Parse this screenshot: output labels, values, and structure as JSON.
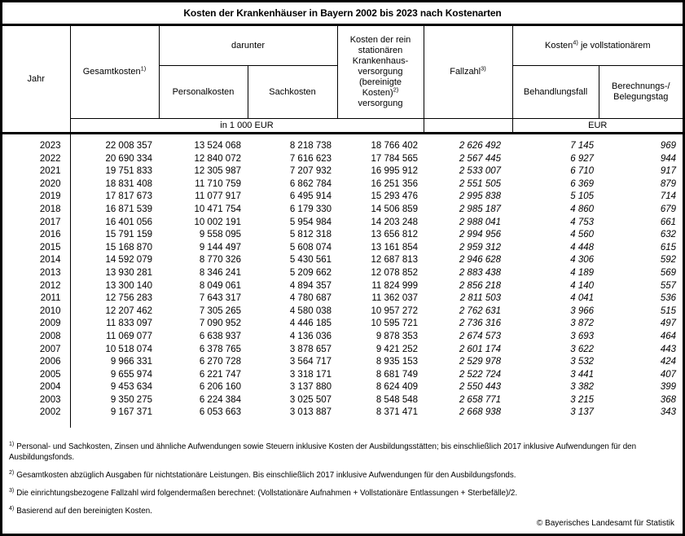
{
  "title": "Kosten der Krankenhäuser in Bayern 2002 bis 2023 nach Kostenarten",
  "table": {
    "header": {
      "jahr": "Jahr",
      "gesamtkosten": {
        "label": "Gesamtkosten",
        "sup": "1)"
      },
      "darunter": "darunter",
      "personalkosten": "Personalkosten",
      "sachkosten": "Sachkosten",
      "bereinigte": {
        "part1": "Kosten der rein stationären Krankenhaus-versorgung (bereinigte Kosten)",
        "sup": "2)",
        "part2": "versorgung"
      },
      "fallzahl": {
        "label": "Fallzahl",
        "sup": "3)"
      },
      "kosten_je": {
        "part1": "Kosten",
        "sup": "4)",
        "part2": " je vollstationärem"
      },
      "behandlungsfall": "Behandlungsfall",
      "belegungstag": {
        "line1": "Berechnungs-/",
        "line2": "Belegungstag"
      },
      "unit_left": "in 1 000 EUR",
      "unit_right": "EUR"
    },
    "rows": [
      [
        "2023",
        "22 008 357",
        "13 524 068",
        "8 218 738",
        "18 766 402",
        "2 626 492",
        "7 145",
        "969"
      ],
      [
        "2022",
        "20 690 334",
        "12 840 072",
        "7 616 623",
        "17 784 565",
        "2 567 445",
        "6 927",
        "944"
      ],
      [
        "2021",
        "19 751 833",
        "12 305 987",
        "7 207 932",
        "16 995 912",
        "2 533 007",
        "6 710",
        "917"
      ],
      [
        "2020",
        "18 831 408",
        "11 710 759",
        "6 862 784",
        "16 251 356",
        "2 551 505",
        "6 369",
        "879"
      ],
      [
        "2019",
        "17 817 673",
        "11 077 917",
        "6 495 914",
        "15 293 476",
        "2 995 838",
        "5 105",
        "714"
      ],
      [
        "2018",
        "16 871 539",
        "10 471 754",
        "6 179 330",
        "14 506 859",
        "2 985 187",
        "4 860",
        "679"
      ],
      [
        "2017",
        "16 401 056",
        "10 002 191",
        "5 954 984",
        "14 203 248",
        "2 988 041",
        "4 753",
        "661"
      ],
      [
        "2016",
        "15 791 159",
        "9 558 095",
        "5 812 318",
        "13 656 812",
        "2 994 956",
        "4 560",
        "632"
      ],
      [
        "2015",
        "15 168 870",
        "9 144 497",
        "5 608 074",
        "13 161 854",
        "2 959 312",
        "4 448",
        "615"
      ],
      [
        "2014",
        "14 592 079",
        "8 770 326",
        "5 430 561",
        "12 687 813",
        "2 946 628",
        "4 306",
        "592"
      ],
      [
        "2013",
        "13 930 281",
        "8 346 241",
        "5 209 662",
        "12 078 852",
        "2 883 438",
        "4 189",
        "569"
      ],
      [
        "2012",
        "13 300 140",
        "8 049 061",
        "4 894 357",
        "11 824 999",
        "2 856 218",
        "4 140",
        "557"
      ],
      [
        "2011",
        "12 756 283",
        "7 643 317",
        "4 780 687",
        "11 362 037",
        "2 811 503",
        "4 041",
        "536"
      ],
      [
        "2010",
        "12 207 462",
        "7 305 265",
        "4 580 038",
        "10 957 272",
        "2 762 631",
        "3 966",
        "515"
      ],
      [
        "2009",
        "11 833 097",
        "7 090 952",
        "4 446 185",
        "10 595 721",
        "2 736 316",
        "3 872",
        "497"
      ],
      [
        "2008",
        "11 069 077",
        "6 638 937",
        "4 136 036",
        "9 878 353",
        "2 674 573",
        "3 693",
        "464"
      ],
      [
        "2007",
        "10 518 074",
        "6 378 765",
        "3 878 657",
        "9 421 252",
        "2 601 174",
        "3 622",
        "443"
      ],
      [
        "2006",
        "9 966 331",
        "6 270 728",
        "3 564 717",
        "8 935 153",
        "2 529 978",
        "3 532",
        "424"
      ],
      [
        "2005",
        "9 655 974",
        "6 221 747",
        "3 318 171",
        "8 681 749",
        "2 522 724",
        "3 441",
        "407"
      ],
      [
        "2004",
        "9 453 634",
        "6 206 160",
        "3 137 880",
        "8 624 409",
        "2 550 443",
        "3 382",
        "399"
      ],
      [
        "2003",
        "9 350 275",
        "6 224 384",
        "3 025 507",
        "8 548 548",
        "2 658 771",
        "3 215",
        "368"
      ],
      [
        "2002",
        "9 167 371",
        "6 053 663",
        "3 013 887",
        "8 371 471",
        "2 668 938",
        "3 137",
        "343"
      ]
    ]
  },
  "footnotes": [
    {
      "sup": "1)",
      "text": "Personal- und Sachkosten, Zinsen und ähnliche Aufwendungen sowie Steuern inklusive Kosten der Ausbildungsstätten; bis einschließlich 2017 inklusive Aufwendungen für den Ausbildungsfonds."
    },
    {
      "sup": "2)",
      "text": "Gesamtkosten abzüglich Ausgaben für nichtstationäre Leistungen. Bis einschließlich 2017 inklusive Aufwendungen für den Ausbildungsfonds."
    },
    {
      "sup": "3)",
      "text": "Die einrichtungsbezogene Fallzahl wird folgendermaßen berechnet: (Vollstationäre Aufnahmen + Vollstationäre Entlassungen + Sterbefälle)/2."
    },
    {
      "sup": "4)",
      "text": "Basierend auf den bereinigten Kosten."
    }
  ],
  "copyright": "© Bayerisches Landesamt für Statistik"
}
